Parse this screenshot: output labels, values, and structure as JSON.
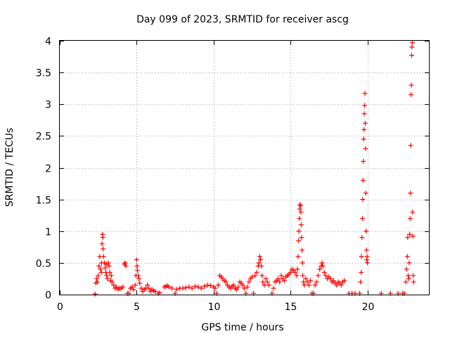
{
  "chart_data": {
    "type": "scatter",
    "title": "Day 099 of 2023, SRMTID for receiver ascg",
    "xlabel": "GPS time / hours",
    "ylabel": "SRMTID / TECUs",
    "xlim": [
      0,
      24
    ],
    "ylim": [
      0,
      4
    ],
    "x_ticks": [
      0,
      5,
      10,
      15,
      20
    ],
    "x_tick_labels": [
      "0",
      "5",
      "10",
      "15",
      "20"
    ],
    "y_ticks": [
      0,
      0.5,
      1,
      1.5,
      2,
      2.5,
      3,
      3.5,
      4
    ],
    "y_tick_labels": [
      "0",
      "0.5",
      "1",
      "1.5",
      "2",
      "2.5",
      "3",
      "3.5",
      "4"
    ],
    "grid": true,
    "marker_color": "#ff0000",
    "series": [
      {
        "name": "SRMTID",
        "marker": "plus",
        "points": [
          [
            2.3,
            0.01
          ],
          [
            2.35,
            0.18
          ],
          [
            2.4,
            0.25
          ],
          [
            2.45,
            0.2
          ],
          [
            2.5,
            0.3
          ],
          [
            2.55,
            0.45
          ],
          [
            2.6,
            0.6
          ],
          [
            2.65,
            0.4
          ],
          [
            2.7,
            0.35
          ],
          [
            2.72,
            0.5
          ],
          [
            2.75,
            0.8
          ],
          [
            2.78,
            0.95
          ],
          [
            2.8,
            0.9
          ],
          [
            2.82,
            0.72
          ],
          [
            2.85,
            0.6
          ],
          [
            2.9,
            0.5
          ],
          [
            2.95,
            0.42
          ],
          [
            3.0,
            0.35
          ],
          [
            3.02,
            0.48
          ],
          [
            3.05,
            0.3
          ],
          [
            3.1,
            0.25
          ],
          [
            3.15,
            0.5
          ],
          [
            3.2,
            0.45
          ],
          [
            3.25,
            0.35
          ],
          [
            3.3,
            0.22
          ],
          [
            3.35,
            0.3
          ],
          [
            3.4,
            0.2
          ],
          [
            3.5,
            0.15
          ],
          [
            3.6,
            0.1
          ],
          [
            3.7,
            0.12
          ],
          [
            3.8,
            0.08
          ],
          [
            3.9,
            0.1
          ],
          [
            4.0,
            0.1
          ],
          [
            4.1,
            0.12
          ],
          [
            4.2,
            0.48
          ],
          [
            4.25,
            0.5
          ],
          [
            4.3,
            0.45
          ],
          [
            4.4,
            0.02
          ],
          [
            4.5,
            0.02
          ],
          [
            4.6,
            0.1
          ],
          [
            4.7,
            0.12
          ],
          [
            4.8,
            0.08
          ],
          [
            4.9,
            0.15
          ],
          [
            4.95,
            0.3
          ],
          [
            5.0,
            0.55
          ],
          [
            5.02,
            0.45
          ],
          [
            5.05,
            0.38
          ],
          [
            5.1,
            0.3
          ],
          [
            5.15,
            0.25
          ],
          [
            5.2,
            0.18
          ],
          [
            5.3,
            0.1
          ],
          [
            5.4,
            0.05
          ],
          [
            5.5,
            0.08
          ],
          [
            5.6,
            0.1
          ],
          [
            5.7,
            0.15
          ],
          [
            5.8,
            0.1
          ],
          [
            5.9,
            0.05
          ],
          [
            6.0,
            0.08
          ],
          [
            6.1,
            0.06
          ],
          [
            6.2,
            0.05
          ],
          [
            6.4,
            0.02
          ],
          [
            6.5,
            0.03
          ],
          [
            6.8,
            0.12
          ],
          [
            6.9,
            0.13
          ],
          [
            7.0,
            0.14
          ],
          [
            7.1,
            0.12
          ],
          [
            7.3,
            0.1
          ],
          [
            7.5,
            0.02
          ],
          [
            7.6,
            0.08
          ],
          [
            7.8,
            0.1
          ],
          [
            8.0,
            0.1
          ],
          [
            8.2,
            0.11
          ],
          [
            8.4,
            0.12
          ],
          [
            8.6,
            0.1
          ],
          [
            8.8,
            0.13
          ],
          [
            9.0,
            0.12
          ],
          [
            9.2,
            0.1
          ],
          [
            9.4,
            0.13
          ],
          [
            9.6,
            0.15
          ],
          [
            9.8,
            0.14
          ],
          [
            10.0,
            0.12
          ],
          [
            10.1,
            0.1
          ],
          [
            10.2,
            0.02
          ],
          [
            10.3,
            0.15
          ],
          [
            10.4,
            0.3
          ],
          [
            10.5,
            0.28
          ],
          [
            10.6,
            0.25
          ],
          [
            10.7,
            0.22
          ],
          [
            10.8,
            0.2
          ],
          [
            10.9,
            0.15
          ],
          [
            11.0,
            0.12
          ],
          [
            11.1,
            0.1
          ],
          [
            11.2,
            0.13
          ],
          [
            11.3,
            0.15
          ],
          [
            11.4,
            0.1
          ],
          [
            11.5,
            0.08
          ],
          [
            11.6,
            0.12
          ],
          [
            11.7,
            0.2
          ],
          [
            11.8,
            0.18
          ],
          [
            11.9,
            0.15
          ],
          [
            12.0,
            0.1
          ],
          [
            12.1,
            0.02
          ],
          [
            12.2,
            0.12
          ],
          [
            12.3,
            0.2
          ],
          [
            12.4,
            0.25
          ],
          [
            12.5,
            0.28
          ],
          [
            12.6,
            0.02
          ],
          [
            12.7,
            0.3
          ],
          [
            12.8,
            0.35
          ],
          [
            12.9,
            0.45
          ],
          [
            12.95,
            0.5
          ],
          [
            13.0,
            0.6
          ],
          [
            13.05,
            0.55
          ],
          [
            13.1,
            0.45
          ],
          [
            13.15,
            0.3
          ],
          [
            13.2,
            0.2
          ],
          [
            13.3,
            0.15
          ],
          [
            13.4,
            0.25
          ],
          [
            13.5,
            0.2
          ],
          [
            13.6,
            0.15
          ],
          [
            13.8,
            0.02
          ],
          [
            13.9,
            0.1
          ],
          [
            14.0,
            0.2
          ],
          [
            14.1,
            0.22
          ],
          [
            14.2,
            0.25
          ],
          [
            14.3,
            0.2
          ],
          [
            14.4,
            0.3
          ],
          [
            14.5,
            0.25
          ],
          [
            14.6,
            0.22
          ],
          [
            14.7,
            0.28
          ],
          [
            14.8,
            0.3
          ],
          [
            14.9,
            0.32
          ],
          [
            15.0,
            0.35
          ],
          [
            15.1,
            0.4
          ],
          [
            15.2,
            0.38
          ],
          [
            15.3,
            0.35
          ],
          [
            15.4,
            0.3
          ],
          [
            15.45,
            0.4
          ],
          [
            15.5,
            0.6
          ],
          [
            15.52,
            0.85
          ],
          [
            15.55,
            1.0
          ],
          [
            15.58,
            1.2
          ],
          [
            15.6,
            1.35
          ],
          [
            15.62,
            1.42
          ],
          [
            15.65,
            1.4
          ],
          [
            15.68,
            1.3
          ],
          [
            15.7,
            1.1
          ],
          [
            15.72,
            0.9
          ],
          [
            15.75,
            0.7
          ],
          [
            15.78,
            0.5
          ],
          [
            15.8,
            0.3
          ],
          [
            15.85,
            0.2
          ],
          [
            15.9,
            0.15
          ],
          [
            16.0,
            0.25
          ],
          [
            16.1,
            0.2
          ],
          [
            16.2,
            0.15
          ],
          [
            16.3,
            0.22
          ],
          [
            16.4,
            0.02
          ],
          [
            16.5,
            0.02
          ],
          [
            16.6,
            0.15
          ],
          [
            16.7,
            0.2
          ],
          [
            16.8,
            0.3
          ],
          [
            16.9,
            0.4
          ],
          [
            17.0,
            0.45
          ],
          [
            17.05,
            0.5
          ],
          [
            17.1,
            0.45
          ],
          [
            17.2,
            0.35
          ],
          [
            17.3,
            0.3
          ],
          [
            17.4,
            0.25
          ],
          [
            17.5,
            0.28
          ],
          [
            17.6,
            0.25
          ],
          [
            17.7,
            0.2
          ],
          [
            17.8,
            0.22
          ],
          [
            17.9,
            0.18
          ],
          [
            18.0,
            0.15
          ],
          [
            18.1,
            0.2
          ],
          [
            18.2,
            0.18
          ],
          [
            18.3,
            0.15
          ],
          [
            18.4,
            0.2
          ],
          [
            18.5,
            0.22
          ],
          [
            18.8,
            0.02
          ],
          [
            19.0,
            0.02
          ],
          [
            19.2,
            0.02
          ],
          [
            19.5,
            0.02
          ],
          [
            19.55,
            0.2
          ],
          [
            19.6,
            0.35
          ],
          [
            19.62,
            0.6
          ],
          [
            19.65,
            0.9
          ],
          [
            19.68,
            1.2
          ],
          [
            19.7,
            1.5
          ],
          [
            19.72,
            1.8
          ],
          [
            19.74,
            2.1
          ],
          [
            19.76,
            2.45
          ],
          [
            19.78,
            2.6
          ],
          [
            19.8,
            2.85
          ],
          [
            19.82,
            2.98
          ],
          [
            19.84,
            3.17
          ],
          [
            19.86,
            2.7
          ],
          [
            19.88,
            2.3
          ],
          [
            19.9,
            1.6
          ],
          [
            19.92,
            1.0
          ],
          [
            19.94,
            0.7
          ],
          [
            19.96,
            0.55
          ],
          [
            19.98,
            0.6
          ],
          [
            20.0,
            0.5
          ],
          [
            20.9,
            0.02
          ],
          [
            21.5,
            0.02
          ],
          [
            22.0,
            0.02
          ],
          [
            22.3,
            0.02
          ],
          [
            22.4,
            0.02
          ],
          [
            22.5,
            0.2
          ],
          [
            22.55,
            0.4
          ],
          [
            22.6,
            0.6
          ],
          [
            22.62,
            0.9
          ],
          [
            22.65,
            0.3
          ],
          [
            22.7,
            0.25
          ],
          [
            22.72,
            0.5
          ],
          [
            22.75,
            0.95
          ],
          [
            22.78,
            1.2
          ],
          [
            22.8,
            1.6
          ],
          [
            22.82,
            2.35
          ],
          [
            22.84,
            3.15
          ],
          [
            22.86,
            3.3
          ],
          [
            22.88,
            3.77
          ],
          [
            22.9,
            3.9
          ],
          [
            22.92,
            3.97
          ],
          [
            22.94,
            1.3
          ],
          [
            22.96,
            0.92
          ],
          [
            22.98,
            0.3
          ],
          [
            23.0,
            0.2
          ]
        ]
      }
    ]
  }
}
